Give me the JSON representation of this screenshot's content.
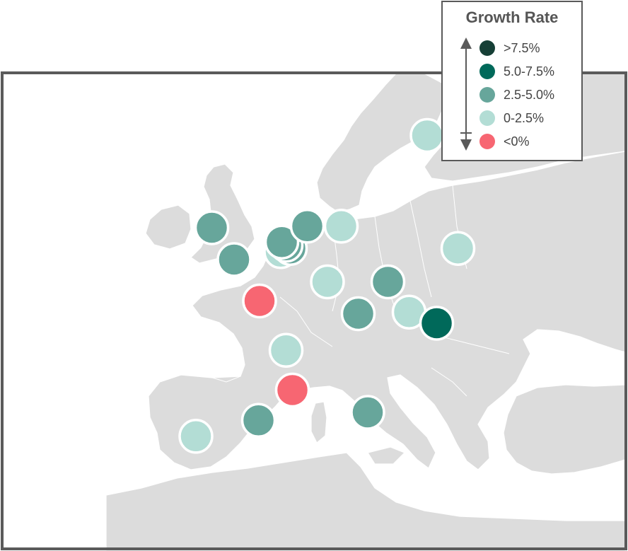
{
  "legend": {
    "title": "Growth Rate",
    "items": [
      {
        "label": ">7.5%",
        "color": "#163f36"
      },
      {
        "label": "5.0-7.5%",
        "color": "#00695a"
      },
      {
        "label": "2.5-5.0%",
        "color": "#67a69b"
      },
      {
        "label": "0-2.5%",
        "color": "#b3ddd5"
      },
      {
        "label": "<0%",
        "color": "#f76672"
      }
    ]
  },
  "colors": {
    "land": "#dcdcdc",
    "water": "#ffffff",
    "frame": "#5a5a5a"
  },
  "markers": [
    {
      "category": "0-2.5%",
      "lon": 18.1,
      "lat": 59.3
    },
    {
      "category": "2.5-5.0%",
      "lon": -2.2,
      "lat": 53.5
    },
    {
      "category": "2.5-5.0%",
      "lon": -0.1,
      "lat": 51.5
    },
    {
      "category": "0-2.5%",
      "lon": 4.3,
      "lat": 52.0
    },
    {
      "category": "2.5-5.0%",
      "lon": 5.2,
      "lat": 52.2
    },
    {
      "category": "2.5-5.0%",
      "lon": 4.8,
      "lat": 52.4
    },
    {
      "category": "2.5-5.0%",
      "lon": 4.4,
      "lat": 52.6
    },
    {
      "category": "2.5-5.0%",
      "lon": 6.8,
      "lat": 53.6
    },
    {
      "category": "0-2.5%",
      "lon": 10.0,
      "lat": 53.6
    },
    {
      "category": "0-2.5%",
      "lon": 21.0,
      "lat": 52.2
    },
    {
      "category": "0-2.5%",
      "lon": 8.7,
      "lat": 50.1
    },
    {
      "category": "2.5-5.0%",
      "lon": 14.4,
      "lat": 50.1
    },
    {
      "category": "2.5-5.0%",
      "lon": 11.6,
      "lat": 48.1
    },
    {
      "category": "0-2.5%",
      "lon": 16.4,
      "lat": 48.2
    },
    {
      "category": "5.0-7.5%",
      "lon": 19.0,
      "lat": 47.5
    },
    {
      "category": "<0%",
      "lon": 2.3,
      "lat": 48.9
    },
    {
      "category": "0-2.5%",
      "lon": 4.8,
      "lat": 45.8
    },
    {
      "category": "<0%",
      "lon": 5.4,
      "lat": 43.3
    },
    {
      "category": "2.5-5.0%",
      "lon": 2.2,
      "lat": 41.4
    },
    {
      "category": "0-2.5%",
      "lon": -3.7,
      "lat": 40.4
    },
    {
      "category": "2.5-5.0%",
      "lon": 12.5,
      "lat": 41.9
    }
  ]
}
